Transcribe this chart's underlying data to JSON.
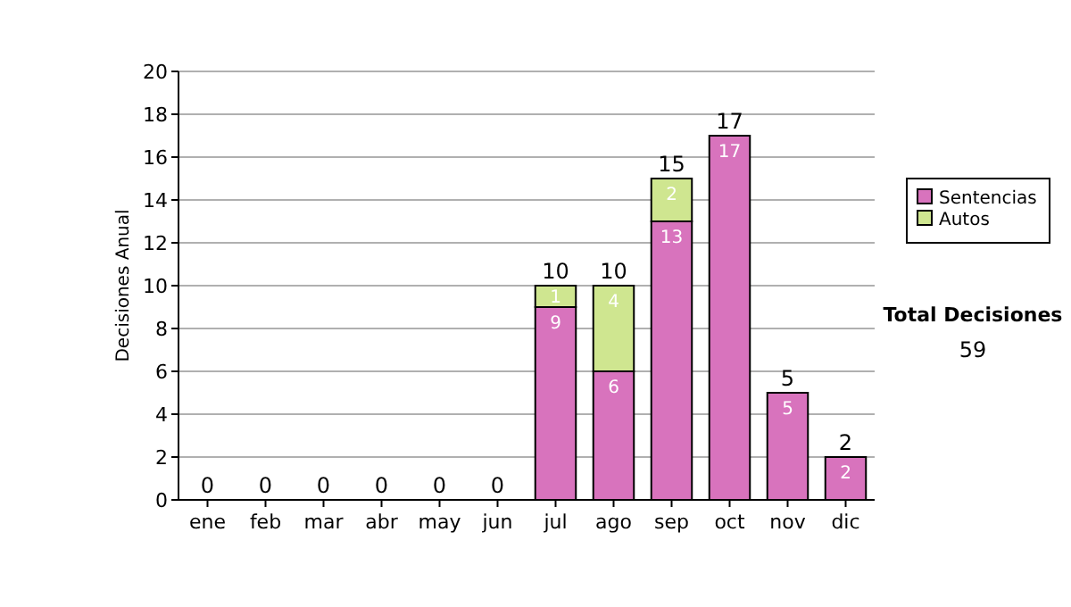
{
  "chart_data": {
    "type": "bar",
    "stacked": true,
    "ylabel": "Decisiones Anual",
    "categories": [
      "ene",
      "feb",
      "mar",
      "abr",
      "may",
      "jun",
      "jul",
      "ago",
      "sep",
      "oct",
      "nov",
      "dic"
    ],
    "series": [
      {
        "name": "Sentencias",
        "color": "#d873bd",
        "values": [
          0,
          0,
          0,
          0,
          0,
          0,
          9,
          6,
          13,
          17,
          5,
          2
        ],
        "value_labels": [
          null,
          null,
          null,
          null,
          null,
          null,
          "9",
          "6",
          "13",
          "17",
          "5",
          "2"
        ]
      },
      {
        "name": "Autos",
        "color": "#cfe690",
        "values": [
          0,
          0,
          0,
          0,
          0,
          0,
          1,
          4,
          2,
          0,
          0,
          0
        ],
        "value_labels": [
          null,
          null,
          null,
          null,
          null,
          null,
          "1",
          "4",
          "2",
          null,
          null,
          null
        ]
      }
    ],
    "totals": [
      "0",
      "0",
      "0",
      "0",
      "0",
      "0",
      "10",
      "10",
      "15",
      "17",
      "5",
      "2"
    ],
    "ylim": [
      0,
      20
    ],
    "yticks": [
      0,
      2,
      4,
      6,
      8,
      10,
      12,
      14,
      16,
      18,
      20
    ],
    "grid": "y",
    "legend": "right",
    "annotations": [
      "Total Decisiones",
      "59"
    ]
  }
}
